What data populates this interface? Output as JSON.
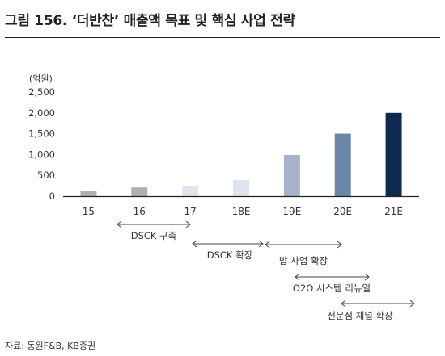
{
  "header": {
    "title": "그림 156. ‘더반찬’ 매출액 목표 및 핵심 사업 전략"
  },
  "footer": {
    "source": "자료: 동원F&B, KB증권"
  },
  "colors": {
    "bar_colors": [
      "#b0b0b0",
      "#b0b0b0",
      "#dfe5ee",
      "#dfe5ee",
      "#a6b3c8",
      "#6a86a9",
      "#0f2a4f"
    ],
    "arrow": "#444444",
    "axis": "#222222"
  },
  "chart_data": {
    "type": "bar",
    "unit_label": "(억원)",
    "categories": [
      "15",
      "16",
      "17",
      "18E",
      "19E",
      "20E",
      "21E"
    ],
    "values": [
      130,
      210,
      250,
      390,
      990,
      1500,
      2000
    ],
    "ylim": [
      0,
      2500
    ],
    "yticks": [
      0,
      500,
      1000,
      1500,
      2000,
      2500
    ],
    "ytick_labels": [
      "0",
      "500",
      "1,000",
      "1,500",
      "2,000",
      "2,500"
    ],
    "grid": false,
    "legend": "none",
    "annotations": [
      {
        "label": "DSCK 구축",
        "from": "16",
        "to": "17"
      },
      {
        "label": "DSCK 확장",
        "from": "17",
        "to": "18E"
      },
      {
        "label": "밥 사업 확장",
        "from": "19E",
        "to": "20E"
      },
      {
        "label": "O2O 시스템 리뉴얼",
        "from": "20E",
        "to": "20E"
      },
      {
        "label": "전문점 채널 확장",
        "from": "20E",
        "to": "21E"
      }
    ]
  }
}
